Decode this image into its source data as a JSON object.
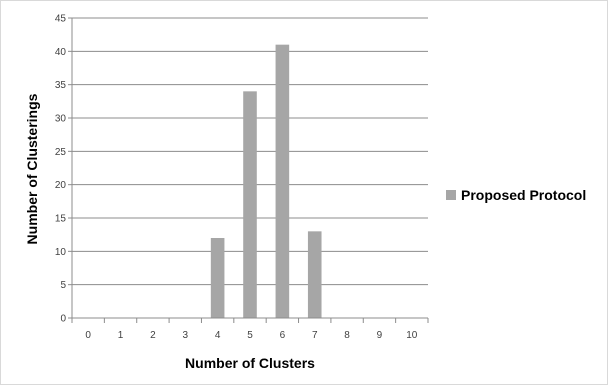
{
  "chart_data": {
    "type": "bar",
    "categories": [
      "0",
      "1",
      "2",
      "3",
      "4",
      "5",
      "6",
      "7",
      "8",
      "9",
      "10"
    ],
    "series": [
      {
        "name": "Proposed Protocol",
        "values": [
          0,
          0,
          0,
          0,
          12,
          34,
          41,
          13,
          0,
          0,
          0
        ],
        "color": "#a6a6a6"
      }
    ],
    "xlabel": "Number of Clusters",
    "ylabel": "Number of Clusterings",
    "ylim": [
      0,
      45
    ],
    "yticks": [
      0,
      5,
      10,
      15,
      20,
      25,
      30,
      35,
      40,
      45
    ],
    "grid": true,
    "legend": "right"
  }
}
